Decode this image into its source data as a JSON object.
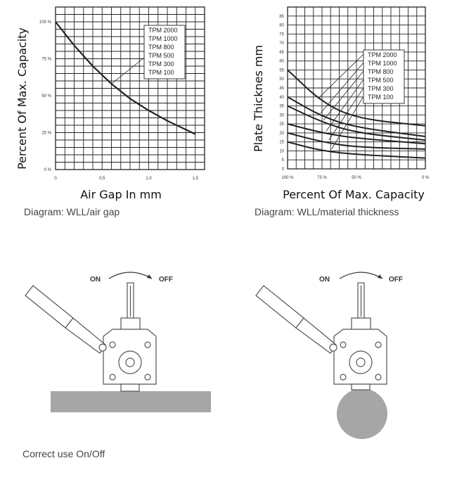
{
  "chart_data": [
    {
      "type": "line",
      "xlabel": "Air Gap In mm",
      "ylabel": "Percent Of Max. Capacity",
      "x_ticks": [
        "0",
        "0,5",
        "1,0",
        "1,5"
      ],
      "y_ticks": [
        "0 %",
        "25 %",
        "50 %",
        "75 %",
        "100 %"
      ],
      "xlim": [
        0,
        1.6
      ],
      "ylim": [
        0,
        110
      ],
      "grid": true,
      "legend": [
        "TPM 2000",
        "TPM 1000",
        "TPM 800",
        "TPM 500",
        "TPM 300",
        "TPM 100"
      ],
      "legend_position": "top-right",
      "series": [
        {
          "x": [
            0,
            0.2,
            0.4,
            0.6,
            0.8,
            1.0,
            1.2,
            1.4,
            1.5
          ],
          "y": [
            100,
            84,
            70,
            58,
            48,
            40,
            33,
            27,
            24
          ]
        }
      ],
      "caption": "Diagram: WLL/air gap"
    },
    {
      "type": "line",
      "xlabel": "Percent Of Max. Capacity",
      "ylabel": "Plate Thicknes mm",
      "x_ticks": [
        "100 %",
        "75 %",
        "50 %",
        "0 %"
      ],
      "y_ticks": [
        "0",
        "5",
        "10",
        "15",
        "20",
        "25",
        "30",
        "35",
        "40",
        "45",
        "50",
        "55",
        "60",
        "65",
        "70",
        "75",
        "80",
        "85"
      ],
      "ylim": [
        0,
        90
      ],
      "grid": true,
      "legend": [
        "TPM 2000",
        "TPM 1000",
        "TPM 800",
        "TPM 500",
        "TPM 300",
        "TPM 100"
      ],
      "legend_position": "top-right",
      "series": [
        {
          "name": "TPM 2000",
          "x": [
            100,
            75,
            50,
            0
          ],
          "y": [
            55,
            37,
            28,
            24
          ]
        },
        {
          "name": "TPM 1000",
          "x": [
            100,
            75,
            50,
            0
          ],
          "y": [
            40,
            29,
            23,
            18
          ]
        },
        {
          "name": "TPM 800",
          "x": [
            100,
            75,
            50,
            0
          ],
          "y": [
            35,
            26,
            20,
            16
          ]
        },
        {
          "name": "TPM 500",
          "x": [
            100,
            75,
            50,
            0
          ],
          "y": [
            25,
            20,
            17,
            14
          ]
        },
        {
          "name": "TPM 300",
          "x": [
            100,
            75,
            50,
            0
          ],
          "y": [
            20,
            15,
            12,
            11
          ]
        },
        {
          "name": "TPM 100",
          "x": [
            100,
            75,
            50,
            0
          ],
          "y": [
            15,
            10,
            8,
            6
          ]
        }
      ],
      "caption": "Diagram: WLL/material thickness"
    }
  ],
  "illustrations": {
    "on_label": "ON",
    "off_label": "OFF",
    "caption": "Correct use On/Off",
    "steel_color": "#a6a6a6"
  }
}
